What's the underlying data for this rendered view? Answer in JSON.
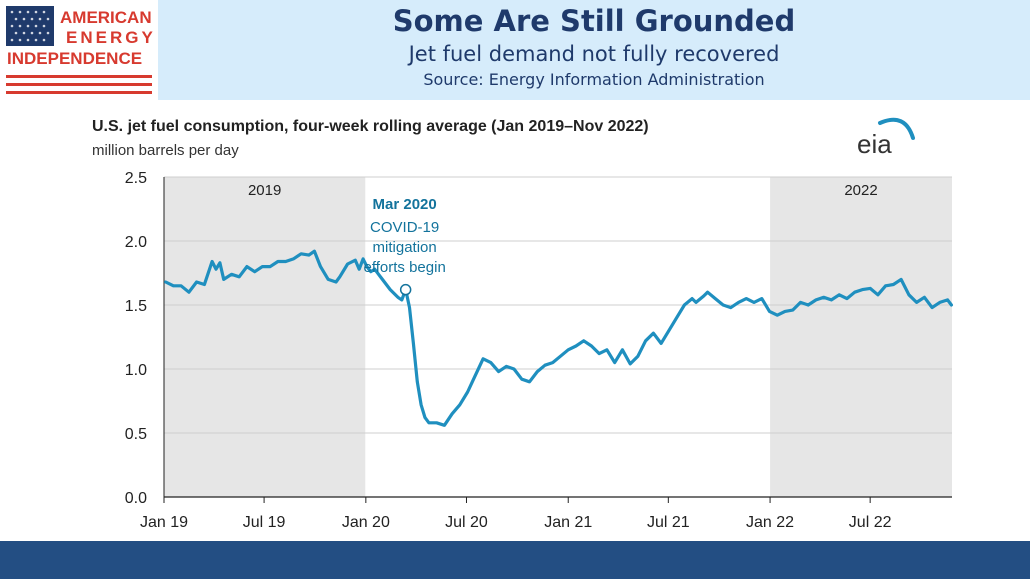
{
  "header": {
    "logo_lines": [
      "AMERICAN",
      "ENERGY",
      "INDEPENDENCE"
    ],
    "title": "Some Are Still Grounded",
    "subtitle": "Jet fuel demand not fully recovered",
    "source": "Source: Energy Information Administration"
  },
  "colors": {
    "header_bg": "#d6ecfb",
    "title": "#1f3a6b",
    "line": "#1f8fbf",
    "annotation": "#13739c",
    "shade": "#e6e6e6",
    "footer": "#234e83",
    "logo_red": "#d73a2f",
    "logo_blue": "#1f3a6b"
  },
  "chart_data": {
    "type": "line",
    "title": "U.S. jet fuel consumption, four-week rolling average (Jan 2019–Nov 2022)",
    "subtitle": "million barrels per day",
    "brand": "eia",
    "ylim": [
      0,
      2.5
    ],
    "yticks": [
      "0.0",
      "0.5",
      "1.0",
      "1.5",
      "2.0",
      "2.5"
    ],
    "xticks": [
      "Jan 19",
      "Jul 19",
      "Jan 20",
      "Jul 20",
      "Jan 21",
      "Jul 21",
      "Jan 22",
      "Jul 22"
    ],
    "xlim": [
      "2019-01-01",
      "2022-11-26"
    ],
    "shaded_periods": [
      {
        "label": "2019",
        "start": "2019-01-01",
        "end": "2019-12-31"
      },
      {
        "label": "2022",
        "start": "2022-01-01",
        "end": "2022-11-26"
      }
    ],
    "annotation": {
      "date": "2020-03-13",
      "value": 1.62,
      "title": "Mar 2020",
      "lines": [
        "COVID-19",
        "mitigation",
        "efforts begin"
      ]
    },
    "series": [
      {
        "points": [
          [
            "2019-01-04",
            1.68
          ],
          [
            "2019-01-18",
            1.65
          ],
          [
            "2019-02-01",
            1.65
          ],
          [
            "2019-02-15",
            1.6
          ],
          [
            "2019-03-01",
            1.68
          ],
          [
            "2019-03-15",
            1.66
          ],
          [
            "2019-03-29",
            1.84
          ],
          [
            "2019-04-05",
            1.78
          ],
          [
            "2019-04-12",
            1.83
          ],
          [
            "2019-04-19",
            1.7
          ],
          [
            "2019-05-03",
            1.74
          ],
          [
            "2019-05-17",
            1.72
          ],
          [
            "2019-05-31",
            1.8
          ],
          [
            "2019-06-14",
            1.76
          ],
          [
            "2019-06-28",
            1.8
          ],
          [
            "2019-07-12",
            1.8
          ],
          [
            "2019-07-26",
            1.84
          ],
          [
            "2019-08-09",
            1.84
          ],
          [
            "2019-08-23",
            1.86
          ],
          [
            "2019-09-06",
            1.9
          ],
          [
            "2019-09-20",
            1.89
          ],
          [
            "2019-09-30",
            1.92
          ],
          [
            "2019-10-11",
            1.8
          ],
          [
            "2019-10-25",
            1.7
          ],
          [
            "2019-11-08",
            1.68
          ],
          [
            "2019-11-15",
            1.72
          ],
          [
            "2019-11-29",
            1.82
          ],
          [
            "2019-12-13",
            1.85
          ],
          [
            "2019-12-20",
            1.78
          ],
          [
            "2019-12-27",
            1.86
          ],
          [
            "2020-01-03",
            1.8
          ],
          [
            "2020-01-10",
            1.76
          ],
          [
            "2020-01-17",
            1.78
          ],
          [
            "2020-01-31",
            1.7
          ],
          [
            "2020-02-14",
            1.62
          ],
          [
            "2020-02-28",
            1.56
          ],
          [
            "2020-03-06",
            1.54
          ],
          [
            "2020-03-13",
            1.62
          ],
          [
            "2020-03-20",
            1.48
          ],
          [
            "2020-03-27",
            1.2
          ],
          [
            "2020-04-03",
            0.9
          ],
          [
            "2020-04-10",
            0.72
          ],
          [
            "2020-04-17",
            0.62
          ],
          [
            "2020-04-24",
            0.58
          ],
          [
            "2020-05-08",
            0.58
          ],
          [
            "2020-05-22",
            0.56
          ],
          [
            "2020-06-05",
            0.65
          ],
          [
            "2020-06-19",
            0.72
          ],
          [
            "2020-07-03",
            0.82
          ],
          [
            "2020-07-17",
            0.95
          ],
          [
            "2020-07-31",
            1.08
          ],
          [
            "2020-08-14",
            1.05
          ],
          [
            "2020-08-28",
            0.98
          ],
          [
            "2020-09-11",
            1.02
          ],
          [
            "2020-09-25",
            1.0
          ],
          [
            "2020-10-09",
            0.92
          ],
          [
            "2020-10-23",
            0.9
          ],
          [
            "2020-11-06",
            0.98
          ],
          [
            "2020-11-20",
            1.03
          ],
          [
            "2020-12-04",
            1.05
          ],
          [
            "2020-12-18",
            1.1
          ],
          [
            "2021-01-01",
            1.15
          ],
          [
            "2021-01-15",
            1.18
          ],
          [
            "2021-01-29",
            1.22
          ],
          [
            "2021-02-12",
            1.18
          ],
          [
            "2021-02-26",
            1.12
          ],
          [
            "2021-03-12",
            1.15
          ],
          [
            "2021-03-26",
            1.05
          ],
          [
            "2021-04-09",
            1.15
          ],
          [
            "2021-04-23",
            1.04
          ],
          [
            "2021-05-07",
            1.1
          ],
          [
            "2021-05-21",
            1.22
          ],
          [
            "2021-06-04",
            1.28
          ],
          [
            "2021-06-18",
            1.2
          ],
          [
            "2021-07-02",
            1.3
          ],
          [
            "2021-07-16",
            1.4
          ],
          [
            "2021-07-30",
            1.5
          ],
          [
            "2021-08-13",
            1.55
          ],
          [
            "2021-08-20",
            1.52
          ],
          [
            "2021-09-03",
            1.57
          ],
          [
            "2021-09-10",
            1.6
          ],
          [
            "2021-09-24",
            1.55
          ],
          [
            "2021-10-08",
            1.5
          ],
          [
            "2021-10-22",
            1.48
          ],
          [
            "2021-11-05",
            1.52
          ],
          [
            "2021-11-19",
            1.55
          ],
          [
            "2021-12-03",
            1.52
          ],
          [
            "2021-12-17",
            1.55
          ],
          [
            "2021-12-31",
            1.45
          ],
          [
            "2022-01-14",
            1.42
          ],
          [
            "2022-01-28",
            1.45
          ],
          [
            "2022-02-11",
            1.46
          ],
          [
            "2022-02-25",
            1.52
          ],
          [
            "2022-03-11",
            1.5
          ],
          [
            "2022-03-25",
            1.54
          ],
          [
            "2022-04-08",
            1.56
          ],
          [
            "2022-04-22",
            1.54
          ],
          [
            "2022-05-06",
            1.58
          ],
          [
            "2022-05-20",
            1.55
          ],
          [
            "2022-06-03",
            1.6
          ],
          [
            "2022-06-17",
            1.62
          ],
          [
            "2022-07-01",
            1.63
          ],
          [
            "2022-07-15",
            1.58
          ],
          [
            "2022-07-29",
            1.65
          ],
          [
            "2022-08-12",
            1.66
          ],
          [
            "2022-08-26",
            1.7
          ],
          [
            "2022-09-09",
            1.58
          ],
          [
            "2022-09-23",
            1.52
          ],
          [
            "2022-10-07",
            1.56
          ],
          [
            "2022-10-21",
            1.48
          ],
          [
            "2022-11-04",
            1.52
          ],
          [
            "2022-11-18",
            1.54
          ],
          [
            "2022-11-25",
            1.5
          ]
        ]
      }
    ]
  }
}
